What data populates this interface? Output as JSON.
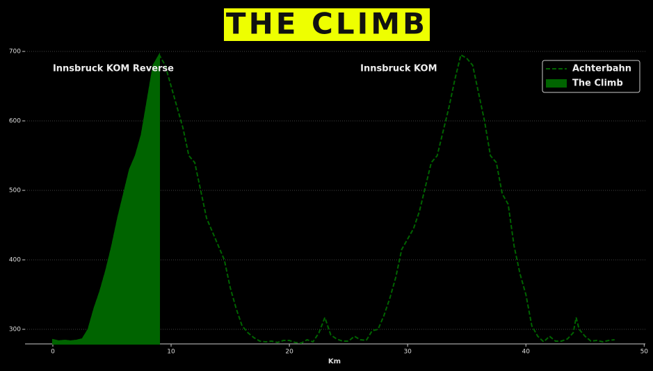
{
  "chart_data": {
    "type": "line",
    "title": "THE CLIMB",
    "xlabel": "Km",
    "xlim": [
      -2.35,
      50.1
    ],
    "ylim": [
      279,
      714
    ],
    "xticks": [
      0,
      10,
      20,
      30,
      40,
      50
    ],
    "yticks": [
      300,
      400,
      500,
      600,
      700
    ],
    "grid": true,
    "legend": "upper right",
    "annotations": [
      {
        "text": "Innsbruck KOM Reverse",
        "x": 0,
        "y": 675
      },
      {
        "text": "Innsbruck KOM",
        "x": 26,
        "y": 675
      }
    ],
    "series": [
      {
        "name": "Achterbahn",
        "color": "#006400",
        "style": "dashed",
        "x": [
          0,
          0.5,
          1,
          1.5,
          2,
          2.5,
          3,
          3.5,
          4,
          4.5,
          5,
          5.5,
          6,
          6.5,
          7,
          7.5,
          8,
          8.5,
          9,
          9.5,
          10,
          10.5,
          11,
          11.5,
          12,
          12.5,
          13,
          13.5,
          14,
          14.5,
          15,
          15.5,
          16,
          16.5,
          17,
          17.5,
          18,
          18.5,
          19,
          19.5,
          20,
          20.5,
          21,
          21.5,
          22,
          22.5,
          23,
          23.5,
          24,
          24.5,
          25,
          25.5,
          26,
          26.5,
          27,
          27.5,
          28,
          28.5,
          29,
          29.5,
          30,
          30.5,
          31,
          31.5,
          32,
          32.5,
          33,
          33.5,
          34,
          34.5,
          35,
          35.5,
          36,
          36.5,
          37,
          37.5,
          38,
          38.5,
          39,
          39.5,
          40,
          40.5,
          41,
          41.5,
          42,
          42.5,
          43,
          43.5,
          44,
          44.25,
          44.5,
          45,
          45.5,
          46,
          46.5,
          47,
          47.5
        ],
        "values": [
          285,
          283,
          284,
          283,
          284,
          286,
          300,
          330,
          355,
          385,
          420,
          460,
          495,
          530,
          550,
          580,
          630,
          680,
          695,
          680,
          650,
          620,
          590,
          550,
          540,
          500,
          460,
          440,
          420,
          400,
          360,
          330,
          305,
          295,
          288,
          283,
          282,
          283,
          281,
          284,
          284,
          281,
          280,
          285,
          282,
          295,
          317,
          292,
          286,
          283,
          283,
          290,
          285,
          284,
          298,
          300,
          320,
          345,
          375,
          415,
          430,
          445,
          470,
          505,
          540,
          550,
          585,
          620,
          660,
          695,
          690,
          680,
          640,
          600,
          550,
          540,
          495,
          480,
          420,
          380,
          350,
          305,
          290,
          282,
          290,
          283,
          283,
          286,
          295,
          317,
          300,
          290,
          283,
          284,
          282,
          284,
          285
        ]
      },
      {
        "name": "The Climb",
        "color": "#006400",
        "style": "area",
        "x": [
          0,
          0.5,
          1,
          1.5,
          2,
          2.5,
          3,
          3.5,
          4,
          4.5,
          5,
          5.5,
          6,
          6.5,
          7,
          7.5,
          8,
          8.5,
          9
        ],
        "values": [
          285,
          283,
          284,
          283,
          284,
          286,
          300,
          330,
          355,
          385,
          420,
          460,
          495,
          530,
          550,
          580,
          630,
          680,
          695
        ]
      }
    ]
  }
}
